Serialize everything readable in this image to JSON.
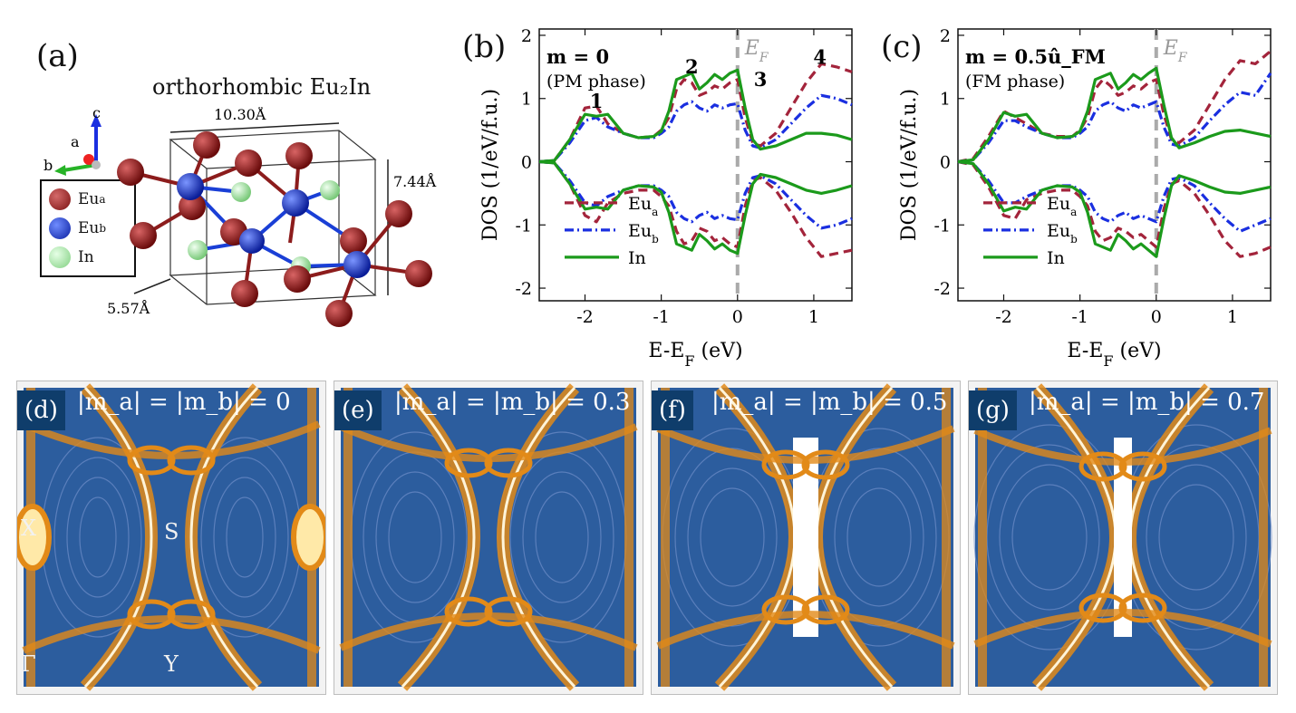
{
  "panel_a": {
    "label": "(a)",
    "title": "orthorhombic Eu₂In",
    "axes": {
      "c": "c",
      "a": "a",
      "b": "b"
    },
    "legend": [
      {
        "name": "Eu",
        "sub": "a",
        "color": "#8c1c1c"
      },
      {
        "name": "Eu",
        "sub": "b",
        "color": "#1a3fd6"
      },
      {
        "name": "In",
        "sub": "",
        "color": "#9be59b"
      }
    ],
    "dims": {
      "width": "10.30Å",
      "height": "7.44Å",
      "depth": "5.57Å"
    }
  },
  "chart_data": [
    {
      "type": "line",
      "panel": "(b)",
      "title": "m = 0",
      "subtitle": "(PM phase)",
      "xlabel": "E-E_F (eV)",
      "ylabel": "DOS (1/eV/f.u.)",
      "xlim": [
        -2.6,
        1.5
      ],
      "ylim": [
        -2.2,
        2.1
      ],
      "xticks": [
        -2,
        -1,
        0,
        1
      ],
      "yticks": [
        -2,
        -1,
        0,
        1,
        2
      ],
      "fermi_label": "E_F",
      "peak_labels": [
        {
          "text": "1",
          "x": -1.85,
          "y": 0.85
        },
        {
          "text": "2",
          "x": -0.6,
          "y": 1.4
        },
        {
          "text": "3",
          "x": 0.3,
          "y": 1.2
        },
        {
          "text": "4",
          "x": 1.08,
          "y": 1.55
        }
      ],
      "legend": [
        "Eu_a",
        "Eu_b",
        "In"
      ],
      "x": [
        -2.6,
        -2.4,
        -2.2,
        -2.0,
        -1.85,
        -1.7,
        -1.5,
        -1.3,
        -1.1,
        -1.0,
        -0.9,
        -0.8,
        -0.7,
        -0.6,
        -0.5,
        -0.4,
        -0.3,
        -0.2,
        -0.1,
        0.0,
        0.1,
        0.2,
        0.3,
        0.5,
        0.7,
        0.9,
        1.1,
        1.3,
        1.5
      ],
      "series": [
        {
          "name": "Eu_a",
          "color": "#a3243b",
          "dash": "10,6",
          "up": [
            0,
            0.02,
            0.35,
            0.85,
            0.88,
            0.6,
            0.45,
            0.38,
            0.4,
            0.5,
            0.7,
            1.15,
            1.3,
            1.25,
            1.05,
            1.1,
            1.2,
            1.15,
            1.25,
            1.3,
            0.7,
            0.3,
            0.25,
            0.45,
            0.85,
            1.25,
            1.55,
            1.5,
            1.42
          ],
          "dn": [
            0,
            -0.02,
            -0.35,
            -0.85,
            -0.95,
            -0.65,
            -0.5,
            -0.45,
            -0.45,
            -0.55,
            -0.7,
            -1.1,
            -1.3,
            -1.25,
            -1.05,
            -1.1,
            -1.25,
            -1.2,
            -1.3,
            -1.35,
            -0.7,
            -0.3,
            -0.25,
            -0.45,
            -0.8,
            -1.2,
            -1.5,
            -1.45,
            -1.4
          ]
        },
        {
          "name": "Eu_b",
          "color": "#1a2fe0",
          "dash": "10,4,2,4",
          "up": [
            0,
            0.02,
            0.3,
            0.65,
            0.7,
            0.55,
            0.45,
            0.38,
            0.38,
            0.45,
            0.55,
            0.8,
            0.9,
            0.95,
            0.85,
            0.8,
            0.9,
            0.85,
            0.9,
            0.92,
            0.5,
            0.25,
            0.22,
            0.35,
            0.6,
            0.85,
            1.05,
            1.0,
            0.9
          ],
          "dn": [
            0,
            -0.02,
            -0.3,
            -0.65,
            -0.7,
            -0.55,
            -0.45,
            -0.38,
            -0.38,
            -0.45,
            -0.55,
            -0.8,
            -0.9,
            -0.95,
            -0.85,
            -0.8,
            -0.9,
            -0.85,
            -0.9,
            -0.92,
            -0.5,
            -0.25,
            -0.22,
            -0.35,
            -0.6,
            -0.85,
            -1.05,
            -1.0,
            -0.9
          ]
        },
        {
          "name": "In",
          "color": "#1b9a1b",
          "dash": "",
          "up": [
            0,
            0.02,
            0.35,
            0.75,
            0.72,
            0.75,
            0.45,
            0.38,
            0.4,
            0.48,
            0.8,
            1.3,
            1.35,
            1.4,
            1.15,
            1.25,
            1.38,
            1.3,
            1.4,
            1.45,
            0.85,
            0.35,
            0.2,
            0.25,
            0.35,
            0.45,
            0.45,
            0.42,
            0.35
          ],
          "dn": [
            0,
            -0.02,
            -0.35,
            -0.75,
            -0.72,
            -0.75,
            -0.45,
            -0.38,
            -0.4,
            -0.48,
            -0.8,
            -1.3,
            -1.35,
            -1.4,
            -1.15,
            -1.25,
            -1.38,
            -1.3,
            -1.4,
            -1.45,
            -0.85,
            -0.35,
            -0.2,
            -0.25,
            -0.35,
            -0.45,
            -0.5,
            -0.45,
            -0.38
          ]
        }
      ]
    },
    {
      "type": "line",
      "panel": "(c)",
      "title": "m = 0.5û_FM",
      "subtitle": "(FM phase)",
      "xlabel": "E-E_F (eV)",
      "ylabel": "DOS (1/eV/f.u.)",
      "xlim": [
        -2.6,
        1.5
      ],
      "ylim": [
        -2.2,
        2.1
      ],
      "xticks": [
        -2,
        -1,
        0,
        1
      ],
      "yticks": [
        -2,
        -1,
        0,
        1,
        2
      ],
      "fermi_label": "E_F",
      "legend": [
        "Eu_a",
        "Eu_b",
        "In"
      ],
      "x": [
        -2.6,
        -2.4,
        -2.2,
        -2.0,
        -1.85,
        -1.7,
        -1.5,
        -1.3,
        -1.1,
        -1.0,
        -0.9,
        -0.8,
        -0.7,
        -0.6,
        -0.5,
        -0.4,
        -0.3,
        -0.2,
        -0.1,
        0.0,
        0.1,
        0.2,
        0.3,
        0.5,
        0.7,
        0.9,
        1.1,
        1.3,
        1.5
      ],
      "series": [
        {
          "name": "Eu_a",
          "color": "#a3243b",
          "dash": "10,6",
          "up": [
            0,
            0.05,
            0.4,
            0.8,
            0.7,
            0.6,
            0.45,
            0.4,
            0.4,
            0.5,
            0.7,
            1.15,
            1.3,
            1.2,
            1.05,
            1.1,
            1.2,
            1.15,
            1.25,
            1.3,
            0.75,
            0.35,
            0.3,
            0.5,
            0.9,
            1.3,
            1.6,
            1.55,
            1.75
          ],
          "dn": [
            0,
            -0.05,
            -0.4,
            -0.85,
            -0.9,
            -0.6,
            -0.5,
            -0.45,
            -0.45,
            -0.55,
            -0.7,
            -1.1,
            -1.25,
            -1.2,
            -1.05,
            -1.1,
            -1.2,
            -1.15,
            -1.25,
            -1.35,
            -0.75,
            -0.35,
            -0.3,
            -0.5,
            -0.85,
            -1.25,
            -1.5,
            -1.45,
            -1.35
          ]
        },
        {
          "name": "Eu_b",
          "color": "#1a2fe0",
          "dash": "10,4,2,4",
          "up": [
            0,
            0.03,
            0.3,
            0.65,
            0.65,
            0.55,
            0.45,
            0.38,
            0.38,
            0.45,
            0.55,
            0.8,
            0.9,
            0.95,
            0.85,
            0.8,
            0.9,
            0.85,
            0.9,
            0.95,
            0.55,
            0.28,
            0.25,
            0.38,
            0.65,
            0.9,
            1.1,
            1.05,
            1.4
          ],
          "dn": [
            0,
            -0.03,
            -0.3,
            -0.65,
            -0.65,
            -0.55,
            -0.45,
            -0.38,
            -0.38,
            -0.45,
            -0.55,
            -0.8,
            -0.9,
            -0.95,
            -0.85,
            -0.8,
            -0.9,
            -0.85,
            -0.9,
            -0.95,
            -0.55,
            -0.28,
            -0.25,
            -0.38,
            -0.65,
            -0.9,
            -1.1,
            -1.0,
            -0.9
          ]
        },
        {
          "name": "In",
          "color": "#1b9a1b",
          "dash": "",
          "up": [
            0,
            0.03,
            0.35,
            0.78,
            0.72,
            0.75,
            0.45,
            0.38,
            0.4,
            0.48,
            0.8,
            1.3,
            1.35,
            1.4,
            1.15,
            1.25,
            1.38,
            1.3,
            1.4,
            1.48,
            0.9,
            0.38,
            0.22,
            0.3,
            0.4,
            0.48,
            0.5,
            0.45,
            0.4
          ],
          "dn": [
            0,
            -0.03,
            -0.35,
            -0.78,
            -0.72,
            -0.75,
            -0.45,
            -0.38,
            -0.4,
            -0.48,
            -0.8,
            -1.3,
            -1.35,
            -1.4,
            -1.15,
            -1.25,
            -1.38,
            -1.3,
            -1.4,
            -1.5,
            -0.9,
            -0.38,
            -0.22,
            -0.3,
            -0.4,
            -0.48,
            -0.5,
            -0.45,
            -0.4
          ]
        }
      ]
    }
  ],
  "maps": [
    {
      "tag": "(d)",
      "caption": "|m_a| = |m_b| = 0",
      "value": 0.0,
      "symbols": [
        "X",
        "S",
        "Γ",
        "Y"
      ]
    },
    {
      "tag": "(e)",
      "caption": "|m_a| = |m_b| = 0.3",
      "value": 0.3,
      "symbols": []
    },
    {
      "tag": "(f)",
      "caption": "|m_a| = |m_b| = 0.5",
      "value": 0.5,
      "symbols": []
    },
    {
      "tag": "(g)",
      "caption": "|m_a| = |m_b| = 0.7",
      "value": 0.7,
      "symbols": []
    }
  ],
  "colors": {
    "map_bg": "#2c5d9e",
    "map_contour": "#e28a18",
    "map_hot": "#ffffff"
  }
}
